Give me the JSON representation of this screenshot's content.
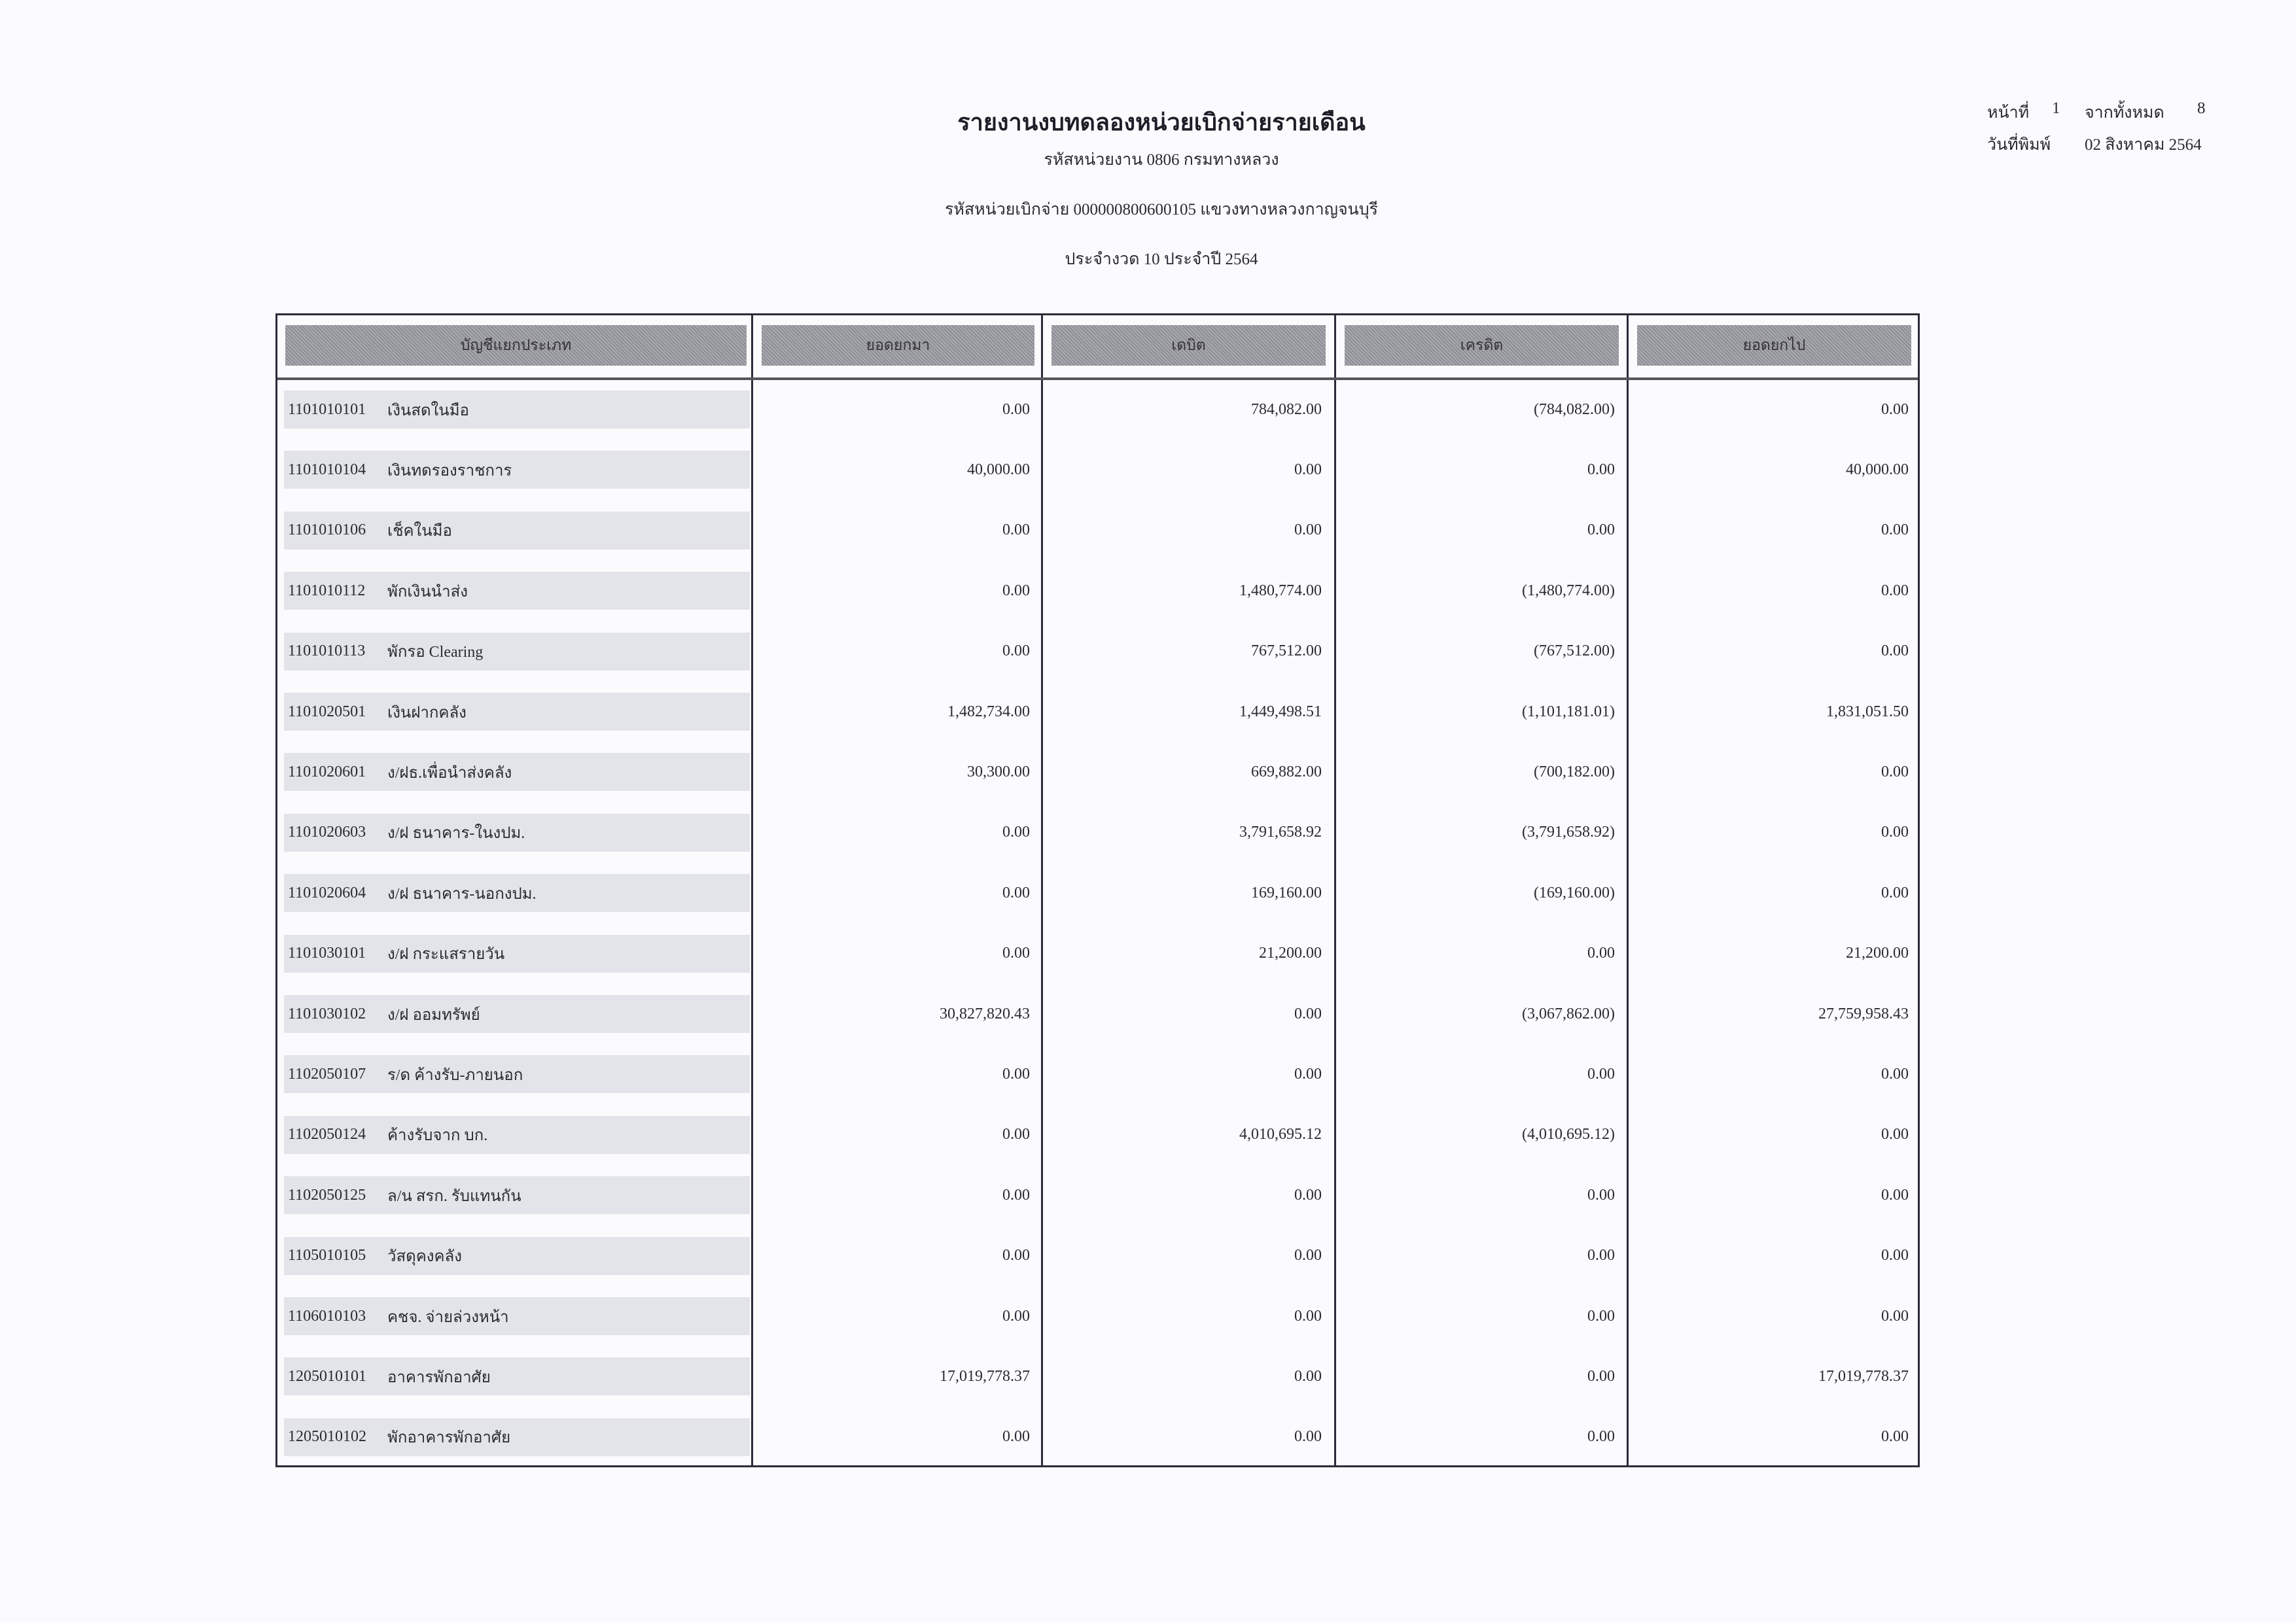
{
  "report": {
    "title": "รายงานงบทดลองหน่วยเบิกจ่ายรายเดือน",
    "agency": "รหัสหน่วยงาน 0806 กรมทางหลวง",
    "disbursing_unit": "รหัสหน่วยเบิกจ่าย 000000800600105 แขวงทางหลวงกาญจนบุรี",
    "period": "ประจำงวด 10 ประจำปี 2564"
  },
  "meta": {
    "page_label": "หน้าที่",
    "page_number": "1",
    "total_label": "จากทั้งหมด",
    "total_pages": "8",
    "print_date_label": "วันที่พิมพ์",
    "print_date": "02 สิงหาคม 2564"
  },
  "table": {
    "headers": [
      "บัญชีแยกประเภท",
      "ยอดยกมา",
      "เดบิต",
      "เครดิต",
      "ยอดยกไป"
    ],
    "rows": [
      {
        "code": "1101010101",
        "name": "เงินสดในมือ",
        "opening": "0.00",
        "debit": "784,082.00",
        "credit": "(784,082.00)",
        "closing": "0.00"
      },
      {
        "code": "1101010104",
        "name": "เงินทดรองราชการ",
        "opening": "40,000.00",
        "debit": "0.00",
        "credit": "0.00",
        "closing": "40,000.00"
      },
      {
        "code": "1101010106",
        "name": "เช็คในมือ",
        "opening": "0.00",
        "debit": "0.00",
        "credit": "0.00",
        "closing": "0.00"
      },
      {
        "code": "1101010112",
        "name": "พักเงินนำส่ง",
        "opening": "0.00",
        "debit": "1,480,774.00",
        "credit": "(1,480,774.00)",
        "closing": "0.00"
      },
      {
        "code": "1101010113",
        "name": "พักรอ Clearing",
        "opening": "0.00",
        "debit": "767,512.00",
        "credit": "(767,512.00)",
        "closing": "0.00"
      },
      {
        "code": "1101020501",
        "name": "เงินฝากคลัง",
        "opening": "1,482,734.00",
        "debit": "1,449,498.51",
        "credit": "(1,101,181.01)",
        "closing": "1,831,051.50"
      },
      {
        "code": "1101020601",
        "name": "ง/ฝธ.เพื่อนำส่งคลัง",
        "opening": "30,300.00",
        "debit": "669,882.00",
        "credit": "(700,182.00)",
        "closing": "0.00"
      },
      {
        "code": "1101020603",
        "name": "ง/ฝ ธนาคาร-ในงปม.",
        "opening": "0.00",
        "debit": "3,791,658.92",
        "credit": "(3,791,658.92)",
        "closing": "0.00"
      },
      {
        "code": "1101020604",
        "name": "ง/ฝ ธนาคาร-นอกงปม.",
        "opening": "0.00",
        "debit": "169,160.00",
        "credit": "(169,160.00)",
        "closing": "0.00"
      },
      {
        "code": "1101030101",
        "name": "ง/ฝ กระแสรายวัน",
        "opening": "0.00",
        "debit": "21,200.00",
        "credit": "0.00",
        "closing": "21,200.00"
      },
      {
        "code": "1101030102",
        "name": "ง/ฝ ออมทรัพย์",
        "opening": "30,827,820.43",
        "debit": "0.00",
        "credit": "(3,067,862.00)",
        "closing": "27,759,958.43"
      },
      {
        "code": "1102050107",
        "name": "ร/ด ค้างรับ-ภายนอก",
        "opening": "0.00",
        "debit": "0.00",
        "credit": "0.00",
        "closing": "0.00"
      },
      {
        "code": "1102050124",
        "name": "ค้างรับจาก บก.",
        "opening": "0.00",
        "debit": "4,010,695.12",
        "credit": "(4,010,695.12)",
        "closing": "0.00"
      },
      {
        "code": "1102050125",
        "name": "ล/น สรก. รับแทนกัน",
        "opening": "0.00",
        "debit": "0.00",
        "credit": "0.00",
        "closing": "0.00"
      },
      {
        "code": "1105010105",
        "name": "วัสดุคงคลัง",
        "opening": "0.00",
        "debit": "0.00",
        "credit": "0.00",
        "closing": "0.00"
      },
      {
        "code": "1106010103",
        "name": "คชจ. จ่ายล่วงหน้า",
        "opening": "0.00",
        "debit": "0.00",
        "credit": "0.00",
        "closing": "0.00"
      },
      {
        "code": "1205010101",
        "name": "อาคารพักอาศัย",
        "opening": "17,019,778.37",
        "debit": "0.00",
        "credit": "0.00",
        "closing": "17,019,778.37"
      },
      {
        "code": "1205010102",
        "name": "พักอาคารพักอาศัย",
        "opening": "0.00",
        "debit": "0.00",
        "credit": "0.00",
        "closing": "0.00"
      }
    ]
  }
}
